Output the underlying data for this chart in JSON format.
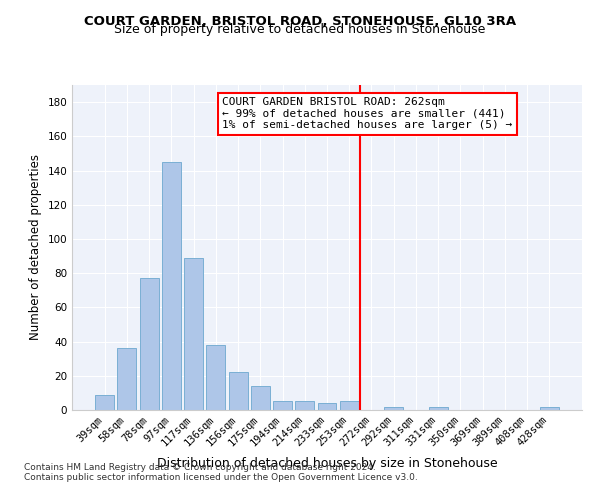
{
  "title": "COURT GARDEN, BRISTOL ROAD, STONEHOUSE, GL10 3RA",
  "subtitle": "Size of property relative to detached houses in Stonehouse",
  "xlabel": "Distribution of detached houses by size in Stonehouse",
  "ylabel": "Number of detached properties",
  "categories": [
    "39sqm",
    "58sqm",
    "78sqm",
    "97sqm",
    "117sqm",
    "136sqm",
    "156sqm",
    "175sqm",
    "194sqm",
    "214sqm",
    "233sqm",
    "253sqm",
    "272sqm",
    "292sqm",
    "311sqm",
    "331sqm",
    "350sqm",
    "369sqm",
    "389sqm",
    "408sqm",
    "428sqm"
  ],
  "values": [
    9,
    36,
    77,
    145,
    89,
    38,
    22,
    14,
    5,
    5,
    4,
    5,
    0,
    2,
    0,
    2,
    0,
    0,
    0,
    0,
    2
  ],
  "bar_color": "#aec6e8",
  "bar_edge_color": "#7aafd4",
  "vline_color": "red",
  "annotation_title": "COURT GARDEN BRISTOL ROAD: 262sqm",
  "annotation_line1": "← 99% of detached houses are smaller (441)",
  "annotation_line2": "1% of semi-detached houses are larger (5) →",
  "annotation_box_color": "white",
  "annotation_box_edge": "red",
  "ylim": [
    0,
    190
  ],
  "yticks": [
    0,
    20,
    40,
    60,
    80,
    100,
    120,
    140,
    160,
    180
  ],
  "bg_color": "#eef2fa",
  "footer1": "Contains HM Land Registry data © Crown copyright and database right 2024.",
  "footer2": "Contains public sector information licensed under the Open Government Licence v3.0.",
  "title_fontsize": 9.5,
  "subtitle_fontsize": 9,
  "xlabel_fontsize": 9,
  "ylabel_fontsize": 8.5,
  "tick_fontsize": 7.5,
  "annotation_fontsize": 8,
  "footer_fontsize": 6.5
}
